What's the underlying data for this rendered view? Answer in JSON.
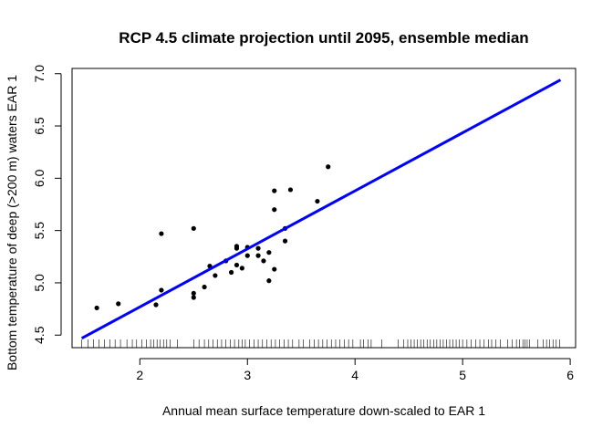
{
  "chart_data": {
    "type": "scatter",
    "title": "RCP 4.5 climate projection until 2095, ensemble median",
    "xlabel": "Annual mean surface temperature down-scaled to EAR 1",
    "ylabel": "Bottom temperature of deep (>200 m) waters EAR 1",
    "xlim": [
      1.37,
      6.05
    ],
    "ylim": [
      4.38,
      7.05
    ],
    "x_ticks": [
      2,
      3,
      4,
      5,
      6
    ],
    "y_ticks": [
      4.5,
      5.0,
      5.5,
      6.0,
      6.5,
      7.0
    ],
    "x_tick_labels": [
      "2",
      "3",
      "4",
      "5",
      "6"
    ],
    "y_tick_labels": [
      "4.5",
      "5.0",
      "5.5",
      "6.0",
      "6.5",
      "7.0"
    ],
    "point_color": "#000000",
    "line_color": "#0000ff",
    "points": [
      {
        "x": 1.6,
        "y": 4.76
      },
      {
        "x": 1.8,
        "y": 4.8
      },
      {
        "x": 2.15,
        "y": 4.79
      },
      {
        "x": 2.2,
        "y": 4.93
      },
      {
        "x": 2.2,
        "y": 5.47
      },
      {
        "x": 2.5,
        "y": 4.86
      },
      {
        "x": 2.5,
        "y": 4.9
      },
      {
        "x": 2.5,
        "y": 5.52
      },
      {
        "x": 2.6,
        "y": 4.96
      },
      {
        "x": 2.65,
        "y": 5.16
      },
      {
        "x": 2.7,
        "y": 5.07
      },
      {
        "x": 2.8,
        "y": 5.21
      },
      {
        "x": 2.85,
        "y": 5.1
      },
      {
        "x": 2.9,
        "y": 5.33
      },
      {
        "x": 2.9,
        "y": 5.35
      },
      {
        "x": 2.9,
        "y": 5.17
      },
      {
        "x": 2.95,
        "y": 5.14
      },
      {
        "x": 3.0,
        "y": 5.26
      },
      {
        "x": 3.0,
        "y": 5.34
      },
      {
        "x": 3.1,
        "y": 5.26
      },
      {
        "x": 3.1,
        "y": 5.33
      },
      {
        "x": 3.15,
        "y": 5.21
      },
      {
        "x": 3.2,
        "y": 5.02
      },
      {
        "x": 3.2,
        "y": 5.29
      },
      {
        "x": 3.25,
        "y": 5.13
      },
      {
        "x": 3.25,
        "y": 5.7
      },
      {
        "x": 3.25,
        "y": 5.88
      },
      {
        "x": 3.35,
        "y": 5.4
      },
      {
        "x": 3.35,
        "y": 5.52
      },
      {
        "x": 3.4,
        "y": 5.89
      },
      {
        "x": 3.65,
        "y": 5.78
      },
      {
        "x": 3.75,
        "y": 6.11
      }
    ],
    "regression_line": {
      "x": [
        1.46,
        5.91
      ],
      "y": [
        4.47,
        6.94
      ]
    },
    "rug_x": [
      1.46,
      1.52,
      1.57,
      1.62,
      1.67,
      1.72,
      1.77,
      1.82,
      1.88,
      1.93,
      1.97,
      2.02,
      2.06,
      2.1,
      2.13,
      2.16,
      2.19,
      2.22,
      2.25,
      2.28,
      2.35,
      2.5,
      2.55,
      2.6,
      2.64,
      2.68,
      2.72,
      2.76,
      2.8,
      2.84,
      2.88,
      2.92,
      2.95,
      2.98,
      3.02,
      3.06,
      3.1,
      3.14,
      3.18,
      3.22,
      3.26,
      3.3,
      3.34,
      3.38,
      3.42,
      3.48,
      3.52,
      3.58,
      3.62,
      3.66,
      3.7,
      3.74,
      3.78,
      3.82,
      3.86,
      3.9,
      3.94,
      3.98,
      4.05,
      4.08,
      4.12,
      4.15,
      4.25,
      4.4,
      4.45,
      4.49,
      4.52,
      4.55,
      4.58,
      4.61,
      4.64,
      4.67,
      4.7,
      4.73,
      4.76,
      4.79,
      4.82,
      4.85,
      4.88,
      4.91,
      4.94,
      4.97,
      5.0,
      5.04,
      5.08,
      5.12,
      5.16,
      5.2,
      5.24,
      5.27,
      5.31,
      5.35,
      5.42,
      5.46,
      5.5,
      5.53,
      5.56,
      5.58,
      5.6,
      5.62,
      5.7,
      5.75,
      5.78,
      5.81,
      5.84,
      5.87,
      5.9
    ]
  }
}
